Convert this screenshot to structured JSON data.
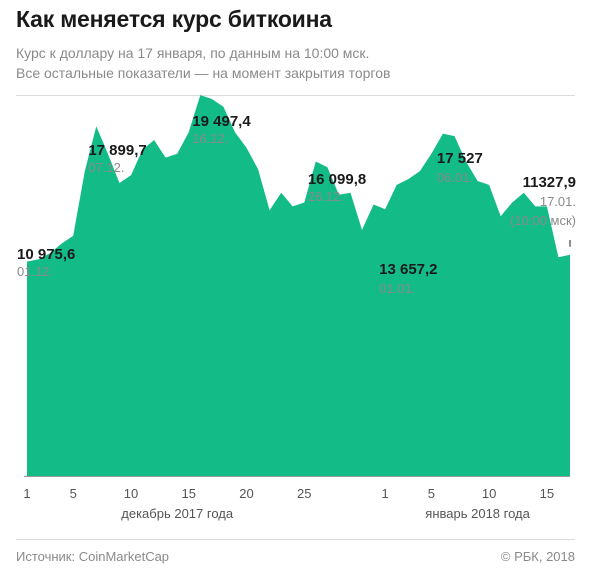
{
  "title": "Как меняется курс биткоина",
  "subtitle_line1": "Курс к доллару на 17 января, по данным на 10:00 мск.",
  "subtitle_line2": "Все остальные показатели — на момент закрытия торгов",
  "source": "Источник: CoinMarketCap",
  "copyright": "© РБК, 2018",
  "colors": {
    "area": "#13bb87",
    "axis": "#9a9a9a",
    "text": "#1a1a1a",
    "muted": "#8a8a8a"
  },
  "chart_data": {
    "type": "area",
    "x_unit": "day",
    "y_unit": "USD",
    "ylim": [
      0,
      21500
    ],
    "x": [
      "01.12",
      "02.12",
      "03.12",
      "04.12",
      "05.12",
      "06.12",
      "07.12",
      "08.12",
      "09.12",
      "10.12",
      "11.12",
      "12.12",
      "13.12",
      "14.12",
      "15.12",
      "16.12",
      "17.12",
      "18.12",
      "19.12",
      "20.12",
      "21.12",
      "22.12",
      "23.12",
      "24.12",
      "25.12",
      "26.12",
      "27.12",
      "28.12",
      "29.12",
      "30.12",
      "31.12",
      "01.01",
      "02.01",
      "03.01",
      "04.01",
      "05.01",
      "06.01",
      "07.01",
      "08.01",
      "09.01",
      "10.01",
      "11.01",
      "12.01",
      "13.01",
      "14.01",
      "15.01",
      "16.01",
      "17.01"
    ],
    "y": [
      10975.6,
      11100,
      11400,
      11900,
      12300,
      15600,
      17899.7,
      16500,
      15000,
      15400,
      16700,
      17200,
      16300,
      16500,
      17600,
      19497.4,
      19300,
      18900,
      17600,
      16800,
      15700,
      13600,
      14500,
      13800,
      14000,
      16099.8,
      15800,
      14400,
      14500,
      12600,
      13900,
      13657.2,
      14900,
      15200,
      15600,
      16500,
      17527,
      17400,
      16100,
      15100,
      14900,
      13300,
      14000,
      14500,
      13800,
      13800,
      11200,
      11327.9
    ],
    "annotations": [
      {
        "x": "01.12",
        "value": "10 975,6",
        "date": "01.12."
      },
      {
        "x": "07.12",
        "value": "17 899,7",
        "date": "07.12."
      },
      {
        "x": "16.12",
        "value": "19 497,4",
        "date": "16.12."
      },
      {
        "x": "26.12",
        "value": "16 099,8",
        "date": "26.12."
      },
      {
        "x": "01.01",
        "value": "13 657,2",
        "date": "01.01."
      },
      {
        "x": "06.01",
        "value": "17 527",
        "date": "06.01."
      },
      {
        "x": "17.01",
        "value": "11327,9",
        "date": "17.01.",
        "note": "(10:00 мск)"
      }
    ],
    "x_ticks": [
      {
        "x": "01.12",
        "label": "1"
      },
      {
        "x": "05.12",
        "label": "5"
      },
      {
        "x": "10.12",
        "label": "10"
      },
      {
        "x": "15.12",
        "label": "15"
      },
      {
        "x": "20.12",
        "label": "20"
      },
      {
        "x": "25.12",
        "label": "25"
      },
      {
        "x": "01.01",
        "label": "1"
      },
      {
        "x": "05.01",
        "label": "5"
      },
      {
        "x": "10.01",
        "label": "10"
      },
      {
        "x": "15.01",
        "label": "15"
      }
    ],
    "month_labels": [
      {
        "x": "14.12",
        "label": "декабрь 2017 года"
      },
      {
        "x": "09.01",
        "label": "январь 2018 года"
      }
    ]
  }
}
